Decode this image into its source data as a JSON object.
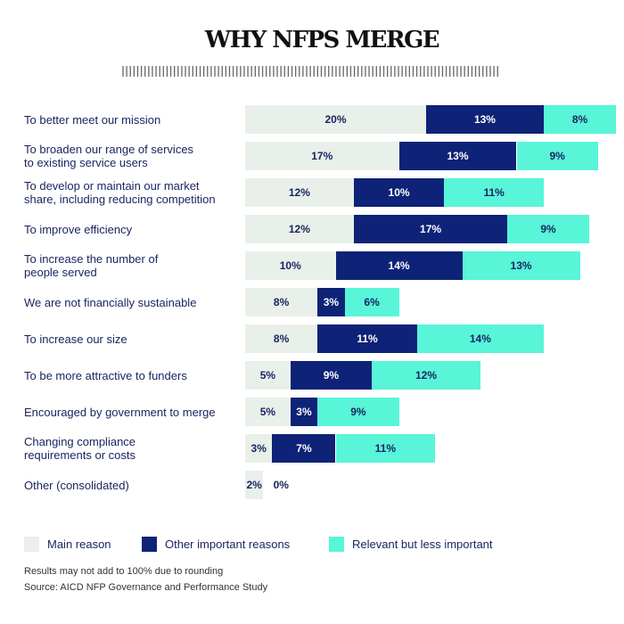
{
  "chart_data": {
    "type": "bar",
    "orientation": "horizontal",
    "stacked": true,
    "title": "WHY NFPS MERGE",
    "categories": [
      "To better meet our mission",
      "To broaden our range of services\nto existing service users",
      "To develop or maintain our market\nshare, including reducing competition",
      "To improve efficiency",
      "To increase the number of\npeople served",
      "We are not financially sustainable",
      "To increase our size",
      "To be more attractive to funders",
      "Encouraged by government to merge",
      "Changing compliance\nrequirements or costs",
      "Other (consolidated)"
    ],
    "series": [
      {
        "name": "Main reason",
        "color": "#e9f0e9",
        "text_color": "#1a2660",
        "values": [
          20,
          17,
          12,
          12,
          10,
          8,
          8,
          5,
          5,
          3,
          2
        ]
      },
      {
        "name": "Other important reasons",
        "color": "#0e2277",
        "text_color": "#ffffff",
        "values": [
          13,
          13,
          10,
          17,
          14,
          3,
          11,
          9,
          3,
          7,
          0
        ]
      },
      {
        "name": "Relevant but less important",
        "color": "#58f5d8",
        "text_color": "#1a2660",
        "values": [
          8,
          9,
          11,
          9,
          13,
          6,
          14,
          12,
          9,
          11,
          null
        ]
      }
    ],
    "unit": "%",
    "xlim": [
      0,
      41
    ],
    "grid": false,
    "legend_position": "bottom"
  },
  "footnotes": {
    "rounding": "Results may not add to 100% due to rounding",
    "source": "Source: AICD NFP Governance and Performance Study"
  }
}
